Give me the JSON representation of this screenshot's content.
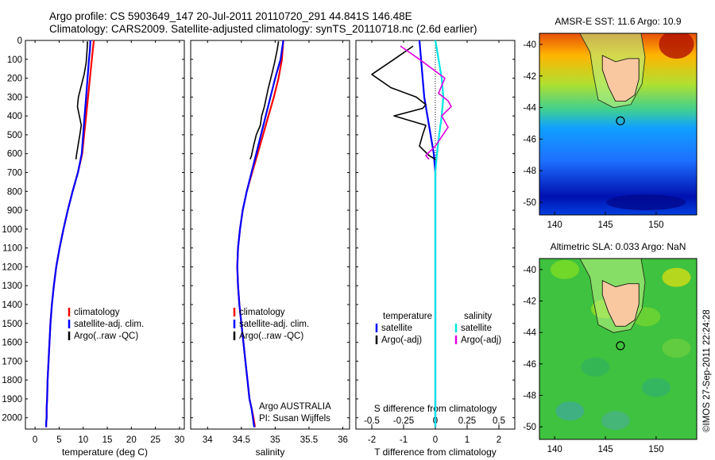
{
  "titles": {
    "line1": "Argo profile: CS 5903649_147 20-Jul-2011 20110720_291 44.841S 146.48E",
    "line2": "Climatology: CARS2009. Satellite-adjusted climatology: synTS_20110718.nc (2.6d earlier)"
  },
  "stamp": "©IMOS 27-Sep-2011 22:24:28",
  "colors": {
    "climatology": "#ff0000",
    "satellite": "#0000ff",
    "argo": "#000000",
    "sal_satellite": "#00e5e5",
    "sal_argo": "#e000e0",
    "land": "#f9c8a0"
  },
  "chart_data": [
    {
      "type": "line",
      "panel": "temperature",
      "xlabel": "temperature (deg C)",
      "ylabel": "",
      "xlim": [
        -2,
        31
      ],
      "ylim": [
        2060,
        0
      ],
      "xticks": [
        0,
        5,
        10,
        15,
        20,
        25,
        30
      ],
      "yticks": [
        0,
        100,
        200,
        300,
        400,
        500,
        600,
        700,
        800,
        900,
        1000,
        1100,
        1200,
        1300,
        1400,
        1500,
        1600,
        1700,
        1800,
        1900,
        2000
      ],
      "legend": [
        "climatology",
        "satellite-adj. clim.",
        "Argo(..raw -QC)"
      ],
      "series": [
        {
          "name": "climatology",
          "x": [
            12.2,
            12.0,
            11.8,
            11.4,
            11.0,
            10.6,
            10.2,
            9.8,
            8.9,
            7.8,
            6.8,
            5.9,
            5.1,
            4.4,
            3.9,
            3.5,
            3.2,
            3.0,
            2.8,
            2.6,
            2.5,
            2.4,
            2.4,
            2.3,
            2.3
          ],
          "y": [
            0,
            50,
            100,
            200,
            300,
            400,
            500,
            600,
            700,
            800,
            900,
            1000,
            1100,
            1200,
            1300,
            1400,
            1500,
            1600,
            1700,
            1800,
            1900,
            1950,
            2000,
            2030,
            2050
          ]
        },
        {
          "name": "satellite-adj. clim.",
          "x": [
            11.5,
            11.4,
            11.2,
            10.9,
            10.6,
            10.3,
            10.0,
            9.7,
            8.9,
            7.8,
            6.8,
            5.9,
            5.1,
            4.4,
            3.9,
            3.5,
            3.2,
            3.0,
            2.8,
            2.6,
            2.5,
            2.4,
            2.4,
            2.3,
            2.3
          ],
          "y": [
            0,
            50,
            100,
            200,
            300,
            400,
            500,
            600,
            700,
            800,
            900,
            1000,
            1100,
            1200,
            1300,
            1400,
            1500,
            1600,
            1700,
            1800,
            1900,
            1950,
            2000,
            2030,
            2050
          ]
        },
        {
          "name": "Argo(..raw -QC)",
          "x": [
            10.9,
            10.8,
            10.6,
            10.2,
            9.5,
            9.0,
            8.8,
            9.2,
            9.6,
            9.3,
            8.9,
            8.6,
            8.5
          ],
          "y": [
            5,
            50,
            120,
            180,
            250,
            300,
            350,
            400,
            450,
            500,
            560,
            610,
            630
          ]
        }
      ]
    },
    {
      "type": "line",
      "panel": "salinity",
      "xlabel": "salinity",
      "ylabel": "",
      "xlim": [
        33.75,
        36.1
      ],
      "ylim": [
        2060,
        0
      ],
      "xticks": [
        34,
        34.5,
        35,
        35.5,
        36
      ],
      "xticklabels": [
        "34",
        "34.5",
        "35",
        "35.5",
        "36"
      ],
      "legend": [
        "climatology",
        "satellite-adj. clim.",
        "Argo(..raw -QC)"
      ],
      "annotation": [
        "Argo AUSTRALIA",
        "PI: Susan Wijffels"
      ],
      "series": [
        {
          "name": "climatology",
          "x": [
            35.12,
            35.1,
            35.05,
            34.98,
            34.9,
            34.82,
            34.74,
            34.66,
            34.58,
            34.52,
            34.48,
            34.45,
            34.44,
            34.45,
            34.47,
            34.5,
            34.53,
            34.56,
            34.59,
            34.62,
            34.65,
            34.68,
            34.7
          ],
          "y": [
            0,
            100,
            200,
            300,
            400,
            500,
            600,
            700,
            800,
            900,
            1000,
            1100,
            1200,
            1300,
            1400,
            1500,
            1600,
            1700,
            1800,
            1900,
            1950,
            2000,
            2050
          ]
        },
        {
          "name": "satellite-adj. clim.",
          "x": [
            35.12,
            35.08,
            35.0,
            34.93,
            34.86,
            34.79,
            34.72,
            34.65,
            34.58,
            34.52,
            34.48,
            34.45,
            34.44,
            34.45,
            34.47,
            34.5,
            34.53,
            34.56,
            34.59,
            34.62,
            34.65,
            34.67,
            34.69
          ],
          "y": [
            0,
            100,
            200,
            300,
            400,
            500,
            600,
            700,
            800,
            900,
            1000,
            1100,
            1200,
            1300,
            1400,
            1500,
            1600,
            1700,
            1800,
            1900,
            1950,
            2000,
            2050
          ]
        },
        {
          "name": "Argo(..raw -QC)",
          "x": [
            35.05,
            35.03,
            34.99,
            34.95,
            34.9,
            34.87,
            34.84,
            34.8,
            34.78,
            34.72,
            34.68,
            34.65,
            34.63
          ],
          "y": [
            5,
            50,
            120,
            180,
            250,
            300,
            350,
            400,
            450,
            500,
            560,
            610,
            630
          ]
        }
      ]
    },
    {
      "type": "line",
      "panel": "difference",
      "xlabel": "T difference from climatology",
      "xlabel_top": "S difference from climatology",
      "xlim": [
        -2.5,
        2.5
      ],
      "ylim": [
        2060,
        0
      ],
      "xticks": [
        -2,
        -1,
        0,
        1,
        2
      ],
      "xticks_top": [
        -2,
        -1,
        0,
        1,
        2
      ],
      "xticklabels_top": [
        "-0.5",
        "-0.25",
        "0",
        "0.25",
        "0.5"
      ],
      "legend_left": {
        "title": "temperature",
        "items": [
          "satellite",
          "Argo(-adj)"
        ]
      },
      "legend_right": {
        "title": "salinity",
        "items": [
          "satellite",
          "Argo(-adj)"
        ]
      },
      "series": [
        {
          "name": "temperature satellite",
          "x": [
            -0.5,
            -0.45,
            -0.4,
            -0.35,
            -0.25,
            -0.15,
            -0.05,
            0.0,
            0.0,
            0.0,
            0.0
          ],
          "y": [
            0,
            100,
            200,
            300,
            400,
            500,
            600,
            700,
            1000,
            1500,
            2050
          ]
        },
        {
          "name": "temperature Argo(-adj)",
          "x": [
            -0.7,
            -1.3,
            -2.0,
            -1.4,
            -0.6,
            -0.3,
            -0.4,
            -1.3,
            -0.3,
            -0.4,
            -0.5,
            -0.2,
            0.0
          ],
          "y": [
            30,
            100,
            180,
            250,
            300,
            340,
            360,
            400,
            450,
            500,
            560,
            610,
            630
          ]
        },
        {
          "name": "salinity satellite",
          "x": [
            0.0,
            0.1,
            0.2,
            0.25,
            0.2,
            0.12,
            0.05,
            0.0,
            0.0,
            0.0,
            0.0
          ],
          "y": [
            0,
            100,
            200,
            300,
            400,
            500,
            600,
            700,
            1000,
            1500,
            2050
          ]
        },
        {
          "name": "salinity Argo(-adj)",
          "x": [
            -1.1,
            -0.5,
            0.3,
            0.1,
            0.4,
            0.5,
            0.2,
            0.4,
            0.0,
            -0.3,
            -0.2
          ],
          "y": [
            30,
            100,
            200,
            280,
            320,
            350,
            400,
            460,
            560,
            610,
            630
          ]
        }
      ]
    },
    {
      "type": "heatmap",
      "panel": "sst-map",
      "title": "AMSR-E SST: 11.6 Argo: 10.9",
      "xlim": [
        138.5,
        154
      ],
      "ylim": [
        -50.8,
        -39.3
      ],
      "xticks": [
        140,
        145,
        150
      ],
      "yticks": [
        -40,
        -42,
        -44,
        -46,
        -48,
        -50
      ],
      "argo_position": {
        "lon": 146.48,
        "lat": -44.841
      }
    },
    {
      "type": "heatmap",
      "panel": "sla-map",
      "title": "Altimetric SLA: 0.033 Argo: NaN",
      "xlim": [
        138.5,
        154
      ],
      "ylim": [
        -50.8,
        -39.3
      ],
      "xticks": [
        140,
        145,
        150
      ],
      "yticks": [
        -40,
        -42,
        -44,
        -46,
        -48,
        -50
      ],
      "argo_position": {
        "lon": 146.48,
        "lat": -44.841
      }
    }
  ]
}
